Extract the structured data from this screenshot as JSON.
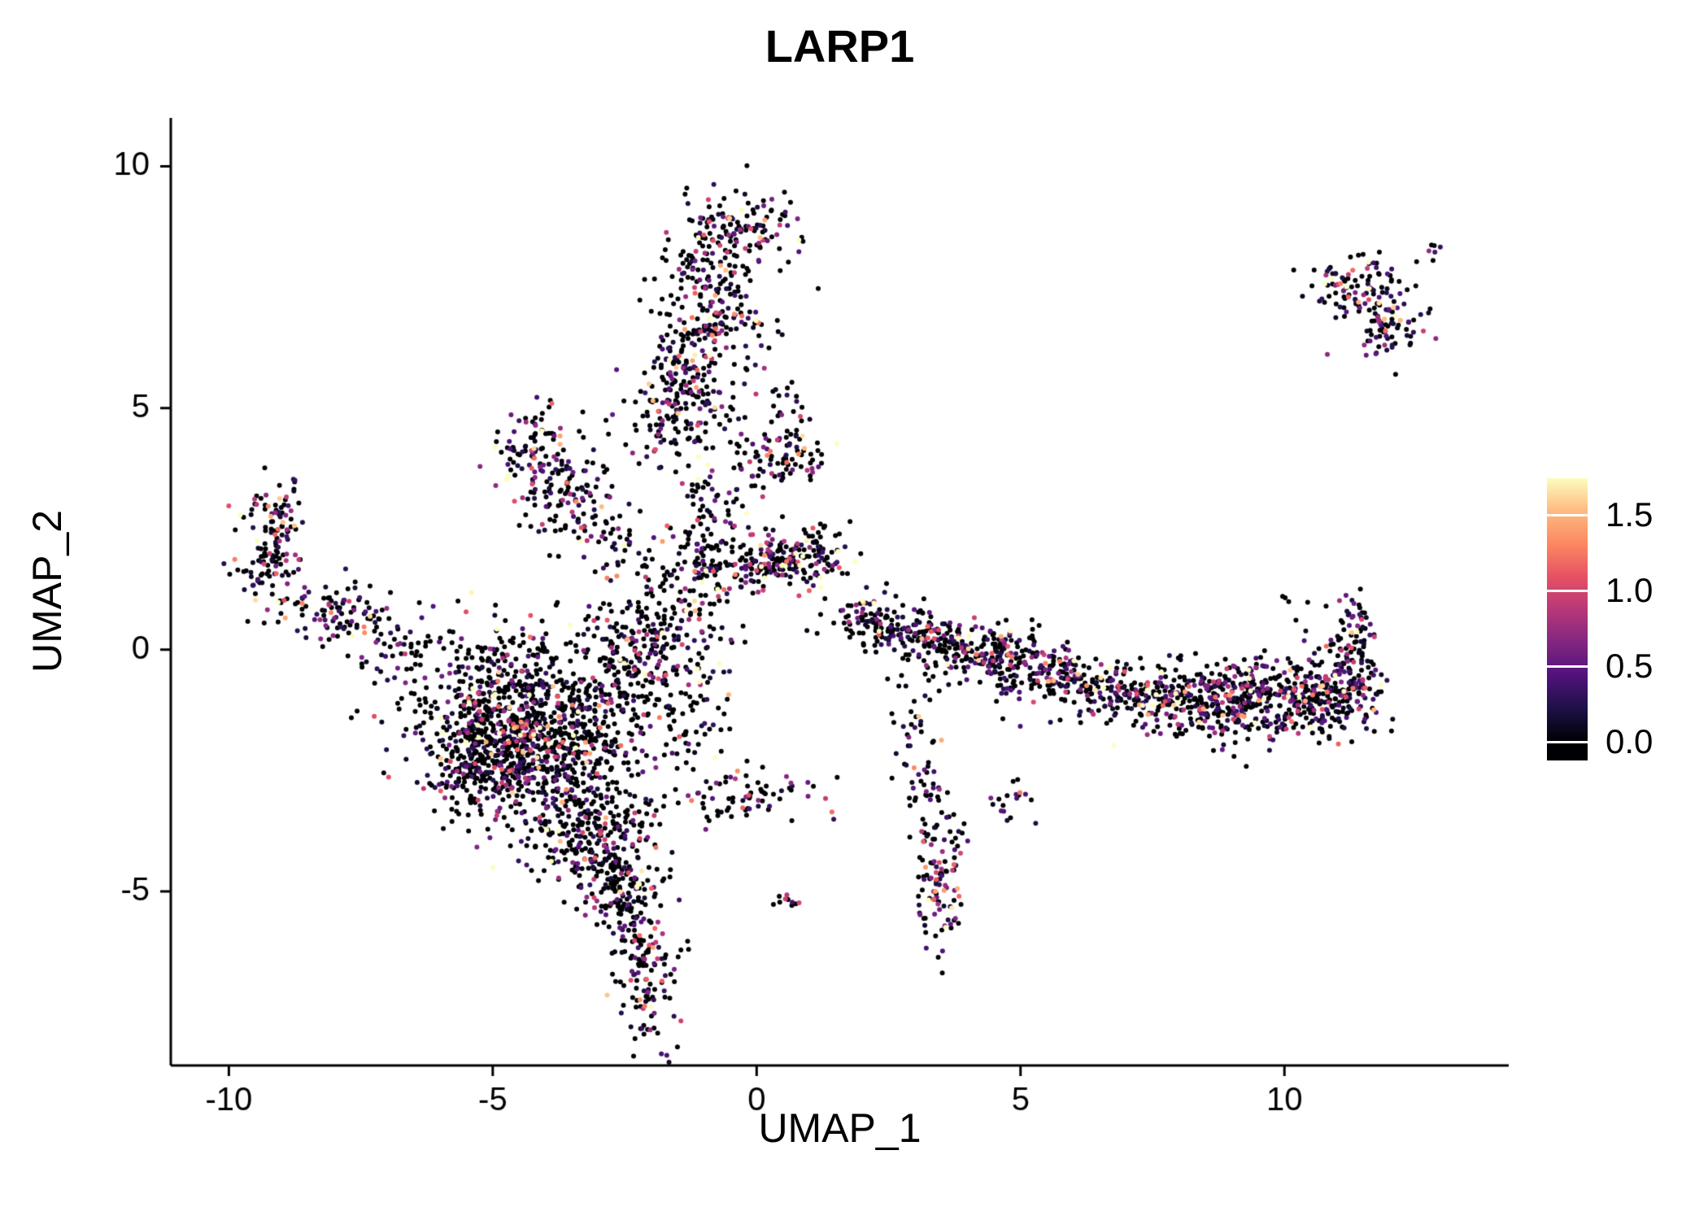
{
  "chart_data": {
    "type": "scatter",
    "title": "LARP1",
    "xlabel": "UMAP_1",
    "ylabel": "UMAP_2",
    "xlim": [
      -11.1,
      14.25
    ],
    "ylim": [
      -8.6,
      11.0
    ],
    "x_ticks": [
      -10,
      -5,
      0,
      5,
      10
    ],
    "x_tick_labels": [
      "-10",
      "-5",
      "0",
      "5",
      "10"
    ],
    "y_ticks": [
      -5,
      0,
      5,
      10
    ],
    "y_tick_labels": [
      "-5",
      "0",
      "5",
      "10"
    ],
    "grid": false,
    "background_color": "#ffffff",
    "axis_color": "#000000",
    "point_radius_px": 3.0,
    "seed": 42,
    "colormap": {
      "name": "magma",
      "stops": [
        "#000004",
        "#1d1147",
        "#51127c",
        "#822681",
        "#b73779",
        "#e75263",
        "#fc8961",
        "#febb81",
        "#fcfdbf"
      ]
    },
    "colorbar": {
      "position": "right",
      "min": 0,
      "max": 1.75,
      "ticks": [
        0.0,
        0.5,
        1.0,
        1.5
      ],
      "tick_labels": [
        "0.0",
        "0.5",
        "1.0",
        "1.5"
      ]
    },
    "value_distribution": {
      "nonzero_default": 0.45,
      "exp_mean": 0.55,
      "max": 1.78
    },
    "clusters": [
      {
        "name": "stem-lower",
        "cx": -1.35,
        "cy": 5.3,
        "sx": 0.45,
        "sy": 0.7,
        "n": 200,
        "pos": 0.5
      },
      {
        "name": "stem-upper",
        "cx": -0.9,
        "cy": 7.2,
        "sx": 0.45,
        "sy": 0.8,
        "n": 200,
        "pos": 0.5
      },
      {
        "name": "stem-cap",
        "cx": -0.3,
        "cy": 8.7,
        "sx": 0.55,
        "sy": 0.38,
        "n": 120,
        "pos": 0.5
      },
      {
        "name": "stem-halo",
        "cx": 0.2,
        "cy": 6.0,
        "sx": 0.5,
        "sy": 0.9,
        "n": 18,
        "pos": 0.4
      },
      {
        "name": "mid-upper-blob",
        "cx": 0.55,
        "cy": 4.15,
        "sx": 0.42,
        "sy": 0.42,
        "n": 90,
        "pos": 0.5
      },
      {
        "name": "upper-scatter",
        "cx": -0.25,
        "cy": 3.3,
        "sx": 0.4,
        "sy": 0.6,
        "n": 25,
        "pos": 0.4
      },
      {
        "name": "branch-left",
        "cx": 0.2,
        "cy": 1.8,
        "sx": 0.5,
        "sy": 0.3,
        "n": 120,
        "pos": 0.45
      },
      {
        "name": "branch-right",
        "cx": 1.0,
        "cy": 1.9,
        "sx": 0.45,
        "sy": 0.3,
        "n": 100,
        "pos": 0.45
      },
      {
        "name": "connector",
        "cx": -0.95,
        "cy": 2.0,
        "sx": 0.32,
        "sy": 1.1,
        "n": 140,
        "pos": 0.45
      },
      {
        "name": "connector-base",
        "cx": -1.6,
        "cy": 0.7,
        "sx": 0.5,
        "sy": 0.5,
        "n": 90,
        "pos": 0.42
      },
      {
        "name": "mass-bridge",
        "cx": -2.6,
        "cy": 0.3,
        "sx": 0.6,
        "sy": 0.45,
        "n": 60,
        "pos": 0.42
      },
      {
        "name": "triangle-apex",
        "cx": -4.2,
        "cy": 4.2,
        "sx": 0.35,
        "sy": 0.45,
        "n": 90,
        "pos": 0.5
      },
      {
        "name": "triangle-base",
        "cx": -3.6,
        "cy": 3.1,
        "sx": 0.45,
        "sy": 0.5,
        "n": 110,
        "pos": 0.5
      },
      {
        "name": "triangle-trail",
        "cx": -2.6,
        "cy": 2.1,
        "sx": 0.55,
        "sy": 0.3,
        "n": 45,
        "rot": -35,
        "pos": 0.45
      },
      {
        "name": "triangle-halo",
        "cx": -2.1,
        "cy": 3.8,
        "sx": 0.5,
        "sy": 0.7,
        "n": 22,
        "pos": 0.4
      },
      {
        "name": "hook",
        "cx": -9.15,
        "cy": 2.7,
        "sx": 0.28,
        "sy": 0.55,
        "n": 90,
        "pos": 0.55
      },
      {
        "name": "hook-tip",
        "cx": -9.35,
        "cy": 1.6,
        "sx": 0.3,
        "sy": 0.25,
        "n": 45,
        "pos": 0.55
      },
      {
        "name": "left-arm",
        "cx": -8.0,
        "cy": 0.75,
        "sx": 0.65,
        "sy": 0.3,
        "n": 110,
        "rot": -15,
        "pos": 0.5
      },
      {
        "name": "left-arm-end",
        "cx": -6.8,
        "cy": -0.05,
        "sx": 0.4,
        "sy": 0.3,
        "n": 30,
        "pos": 0.45
      },
      {
        "name": "left-outliers",
        "cx": -6.3,
        "cy": 0.95,
        "sx": 0.5,
        "sy": 0.25,
        "n": 5,
        "pos": 0.4
      },
      {
        "name": "mass-upper",
        "cx": -4.7,
        "cy": -1.1,
        "sx": 0.95,
        "sy": 0.75,
        "n": 550,
        "pos": 0.38
      },
      {
        "name": "mass-lower",
        "cx": -3.6,
        "cy": -2.3,
        "sx": 0.85,
        "sy": 0.95,
        "n": 520,
        "pos": 0.38
      },
      {
        "name": "mass-left",
        "cx": -5.2,
        "cy": -2.3,
        "sx": 0.55,
        "sy": 0.6,
        "n": 260,
        "pos": 0.38
      },
      {
        "name": "mass-bottom",
        "cx": -3.0,
        "cy": -3.9,
        "sx": 0.55,
        "sy": 0.6,
        "n": 200,
        "pos": 0.4
      },
      {
        "name": "tail-upper",
        "cx": -2.6,
        "cy": -5.0,
        "sx": 0.35,
        "sy": 0.5,
        "n": 120,
        "pos": 0.45
      },
      {
        "name": "tail-lower",
        "cx": -2.05,
        "cy": -6.6,
        "sx": 0.3,
        "sy": 0.75,
        "n": 130,
        "pos": 0.45
      },
      {
        "name": "mass-right",
        "cx": -2.2,
        "cy": -0.3,
        "sx": 0.55,
        "sy": 0.55,
        "n": 130,
        "pos": 0.4
      },
      {
        "name": "mass-right-scatter",
        "cx": -1.2,
        "cy": -1.4,
        "sx": 0.5,
        "sy": 0.6,
        "n": 55,
        "pos": 0.4
      },
      {
        "name": "bottom-arc",
        "cx": -0.2,
        "cy": -3.1,
        "sx": 1.0,
        "sy": 0.25,
        "n": 70,
        "rot": 8,
        "pos": 0.45
      },
      {
        "name": "bottom-dot",
        "cx": 0.55,
        "cy": -5.2,
        "sx": 0.18,
        "sy": 0.14,
        "n": 10,
        "pos": 0.6
      },
      {
        "name": "mid-column",
        "cx": 3.5,
        "cy": -4.7,
        "sx": 0.22,
        "sy": 0.7,
        "n": 110,
        "pos": 0.55
      },
      {
        "name": "mid-column-trail",
        "cx": 3.15,
        "cy": -2.6,
        "sx": 0.2,
        "sy": 0.55,
        "n": 35,
        "pos": 0.5
      },
      {
        "name": "mid-column-link",
        "cx": 2.85,
        "cy": -1.1,
        "sx": 0.3,
        "sy": 0.5,
        "n": 25,
        "pos": 0.45
      },
      {
        "name": "band-1",
        "cx": 2.35,
        "cy": 0.55,
        "sx": 0.45,
        "sy": 0.28,
        "n": 110,
        "rot": -10,
        "pos": 0.5
      },
      {
        "name": "band-2",
        "cx": 3.3,
        "cy": 0.2,
        "sx": 0.4,
        "sy": 0.25,
        "n": 90,
        "pos": 0.5
      },
      {
        "name": "band-3",
        "cx": 4.2,
        "cy": -0.05,
        "sx": 0.5,
        "sy": 0.3,
        "n": 150,
        "pos": 0.5
      },
      {
        "name": "band-4",
        "cx": 5.3,
        "cy": -0.45,
        "sx": 0.6,
        "sy": 0.3,
        "n": 120,
        "pos": 0.5
      },
      {
        "name": "band-5",
        "cx": 6.5,
        "cy": -0.8,
        "sx": 0.7,
        "sy": 0.32,
        "n": 140,
        "pos": 0.5
      },
      {
        "name": "band-6",
        "cx": 7.9,
        "cy": -1.05,
        "sx": 0.7,
        "sy": 0.38,
        "n": 200,
        "pos": 0.5
      },
      {
        "name": "band-7",
        "cx": 9.2,
        "cy": -1.05,
        "sx": 0.7,
        "sy": 0.42,
        "n": 240,
        "pos": 0.5
      },
      {
        "name": "band-8",
        "cx": 10.5,
        "cy": -0.95,
        "sx": 0.55,
        "sy": 0.45,
        "n": 220,
        "pos": 0.5
      },
      {
        "name": "band-tip",
        "cx": 11.25,
        "cy": -0.6,
        "sx": 0.3,
        "sy": 0.55,
        "n": 110,
        "pos": 0.5
      },
      {
        "name": "band-spur",
        "cx": 11.35,
        "cy": 0.45,
        "sx": 0.18,
        "sy": 0.35,
        "n": 45,
        "pos": 0.5
      },
      {
        "name": "band-outlier",
        "cx": 10.15,
        "cy": 1.05,
        "sx": 0.12,
        "sy": 0.1,
        "n": 4,
        "pos": 0.5
      },
      {
        "name": "band-below",
        "cx": 4.9,
        "cy": -3.2,
        "sx": 0.25,
        "sy": 0.25,
        "n": 18,
        "pos": 0.5
      },
      {
        "name": "topright-upper",
        "cx": 11.3,
        "cy": 7.6,
        "sx": 0.4,
        "sy": 0.3,
        "n": 80,
        "pos": 0.62
      },
      {
        "name": "topright-lower",
        "cx": 11.95,
        "cy": 6.7,
        "sx": 0.35,
        "sy": 0.42,
        "n": 90,
        "pos": 0.62
      },
      {
        "name": "topright-outlier",
        "cx": 12.85,
        "cy": 8.3,
        "sx": 0.12,
        "sy": 0.1,
        "n": 6,
        "pos": 0.6
      }
    ]
  }
}
